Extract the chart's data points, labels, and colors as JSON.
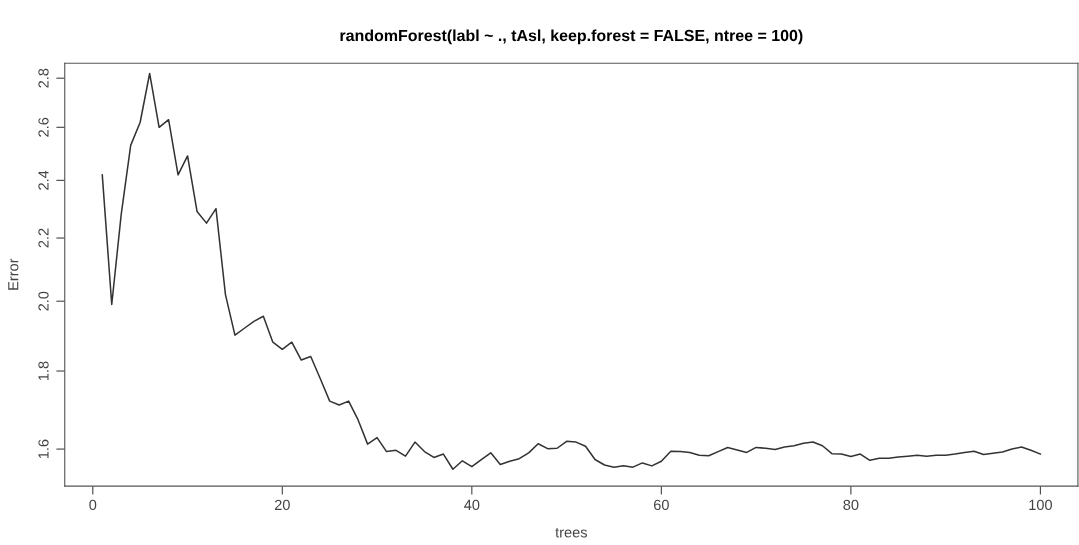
{
  "chart_data": {
    "type": "line",
    "title": "randomForest(labl ~ ., tAsl, keep.forest = FALSE, ntree = 100)",
    "xlabel": "trees",
    "ylabel": "Error",
    "x": [
      1,
      2,
      3,
      4,
      5,
      6,
      7,
      8,
      9,
      10,
      11,
      12,
      13,
      14,
      15,
      16,
      17,
      18,
      19,
      20,
      21,
      22,
      23,
      24,
      25,
      26,
      27,
      28,
      29,
      30,
      31,
      32,
      33,
      34,
      35,
      36,
      37,
      38,
      39,
      40,
      41,
      42,
      43,
      44,
      45,
      46,
      47,
      48,
      49,
      50,
      51,
      52,
      53,
      54,
      55,
      56,
      57,
      58,
      59,
      60,
      61,
      62,
      63,
      64,
      65,
      66,
      67,
      68,
      69,
      70,
      71,
      72,
      73,
      74,
      75,
      76,
      77,
      78,
      79,
      80,
      81,
      82,
      83,
      84,
      85,
      86,
      87,
      88,
      89,
      90,
      91,
      92,
      93,
      94,
      95,
      96,
      97,
      98,
      99,
      100
    ],
    "series": [
      {
        "color": "#333333",
        "values": [
          2.42,
          1.99,
          2.28,
          2.53,
          2.62,
          2.82,
          2.6,
          2.63,
          2.42,
          2.49,
          2.29,
          2.25,
          2.3,
          2.02,
          1.9,
          1.92,
          1.94,
          1.955,
          1.88,
          1.86,
          1.88,
          1.83,
          1.84,
          1.78,
          1.72,
          1.71,
          1.72,
          1.672,
          1.612,
          1.628,
          1.594,
          1.597,
          1.583,
          1.617,
          1.594,
          1.58,
          1.588,
          1.552,
          1.572,
          1.558,
          1.575,
          1.591,
          1.563,
          1.571,
          1.577,
          1.591,
          1.613,
          1.601,
          1.602,
          1.619,
          1.617,
          1.607,
          1.575,
          1.562,
          1.557,
          1.56,
          1.557,
          1.567,
          1.56,
          1.571,
          1.595,
          1.594,
          1.592,
          1.585,
          1.584,
          1.594,
          1.604,
          1.598,
          1.592,
          1.604,
          1.602,
          1.599,
          1.605,
          1.608,
          1.614,
          1.617,
          1.608,
          1.589,
          1.588,
          1.582,
          1.588,
          1.573,
          1.578,
          1.578,
          1.581,
          1.583,
          1.585,
          1.583,
          1.585,
          1.585,
          1.588,
          1.592,
          1.595,
          1.587,
          1.59,
          1.593,
          1.6,
          1.605,
          1.597,
          1.588
        ]
      }
    ],
    "log": "y",
    "xlim": [
      -2.96,
      103.96
    ],
    "ylim": [
      1.513,
      2.864
    ],
    "xticks": [
      0,
      20,
      40,
      60,
      80,
      100
    ],
    "yticks": [
      1.6,
      1.8,
      {
        "value": 2.0,
        "label": "2.0"
      },
      2.2,
      2.4,
      2.6,
      2.8
    ],
    "grid": false,
    "legend": false,
    "marker": "none",
    "line_style": "solid"
  }
}
